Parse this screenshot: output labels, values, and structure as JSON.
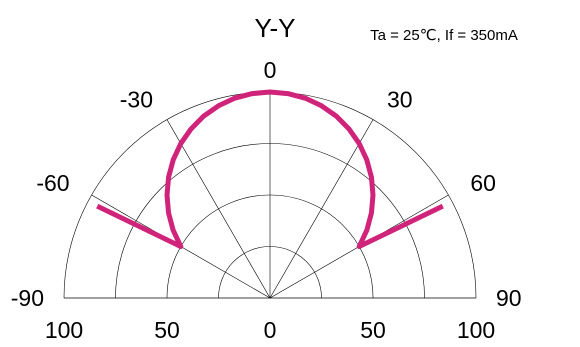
{
  "chart_data": {
    "type": "polar",
    "title": "Y-Y",
    "subtitle": "Ta = 25℃, If = 350mA",
    "angle_range": [
      -90,
      90
    ],
    "angle_ticks": [
      {
        "value": -90,
        "label": "-90"
      },
      {
        "value": -60,
        "label": "-60"
      },
      {
        "value": -30,
        "label": "-30"
      },
      {
        "value": 0,
        "label": "0"
      },
      {
        "value": 30,
        "label": "30"
      },
      {
        "value": 60,
        "label": "60"
      },
      {
        "value": 90,
        "label": "90"
      }
    ],
    "radial_range": [
      0,
      100
    ],
    "radial_rings": [
      25,
      50,
      75,
      100
    ],
    "radial_tick_labels": [
      {
        "value": 100,
        "side": "left",
        "label": "100"
      },
      {
        "value": 50,
        "side": "left",
        "label": "50"
      },
      {
        "value": 0,
        "side": "center",
        "label": "0"
      },
      {
        "value": 50,
        "side": "right",
        "label": "50"
      },
      {
        "value": 100,
        "side": "right",
        "label": "100"
      }
    ],
    "grid": true,
    "series": [
      {
        "color": "#d0237a",
        "angles_deg": [
          -62,
          -60,
          -55,
          -50,
          -45,
          -40,
          -35,
          -30,
          -25,
          -20,
          -15,
          -10,
          -5,
          0,
          5,
          10,
          15,
          20,
          25,
          30,
          35,
          40,
          45,
          50,
          55,
          60,
          62
        ],
        "values": [
          95,
          50,
          57.4,
          64.3,
          70.7,
          76.6,
          81.9,
          86.6,
          90.6,
          94.0,
          96.6,
          98.5,
          99.6,
          100,
          99.6,
          98.5,
          96.6,
          94.0,
          90.6,
          86.6,
          81.9,
          76.6,
          70.7,
          64.3,
          57.4,
          50,
          95
        ]
      }
    ]
  }
}
